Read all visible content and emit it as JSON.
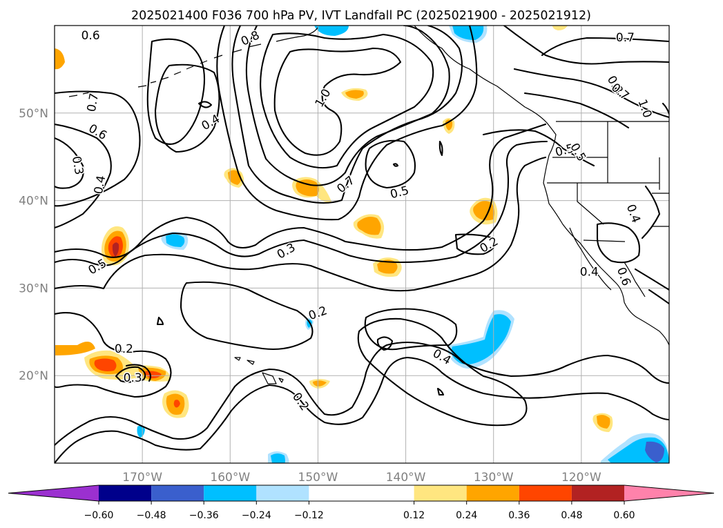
{
  "chart_data": {
    "type": "contour_map",
    "title": "2025021400 F036 700 hPa PV, IVT Landfall PC (2025021900 - 2025021912)",
    "map": {
      "lon_range": [
        -180,
        -110
      ],
      "lat_range": [
        10,
        60
      ],
      "x_ticks": [
        {
          "value": -170,
          "label": "170°W"
        },
        {
          "value": -160,
          "label": "160°W"
        },
        {
          "value": -150,
          "label": "150°W"
        },
        {
          "value": -140,
          "label": "140°W"
        },
        {
          "value": -130,
          "label": "130°W"
        },
        {
          "value": -120,
          "label": "120°W"
        }
      ],
      "y_ticks": [
        {
          "value": 20,
          "label": "20°N"
        },
        {
          "value": 30,
          "label": "30°N"
        },
        {
          "value": 40,
          "label": "40°N"
        },
        {
          "value": 50,
          "label": "50°N"
        }
      ],
      "grid": true
    },
    "contour_labels": [
      {
        "text": "0.6",
        "lon": -175.9,
        "lat": 58.8,
        "rot": 0
      },
      {
        "text": "0.8",
        "lon": -157.7,
        "lat": 58.5,
        "rot": -25
      },
      {
        "text": "0.7",
        "lon": -175.6,
        "lat": 51.2,
        "rot": -80
      },
      {
        "text": "0.6",
        "lon": -175.1,
        "lat": 47.8,
        "rot": 30
      },
      {
        "text": "0.4",
        "lon": -162.2,
        "lat": 48.9,
        "rot": -30
      },
      {
        "text": "1.0",
        "lon": -149.4,
        "lat": 51.7,
        "rot": -60
      },
      {
        "text": "0.3",
        "lon": -177.4,
        "lat": 44.0,
        "rot": 80
      },
      {
        "text": "0.4",
        "lon": -174.8,
        "lat": 41.8,
        "rot": -80
      },
      {
        "text": "0.7",
        "lon": -146.8,
        "lat": 41.8,
        "rot": -40
      },
      {
        "text": "0.5",
        "lon": -140.7,
        "lat": 40.9,
        "rot": -15
      },
      {
        "text": "0.5",
        "lon": -175.1,
        "lat": 32.4,
        "rot": -30
      },
      {
        "text": "0.3",
        "lon": -153.6,
        "lat": 34.2,
        "rot": -30
      },
      {
        "text": "0.2",
        "lon": -130.5,
        "lat": 34.9,
        "rot": -30
      },
      {
        "text": "0.4",
        "lon": -119.1,
        "lat": 31.8,
        "rot": 0
      },
      {
        "text": "0.2",
        "lon": -150.0,
        "lat": 27.1,
        "rot": -20
      },
      {
        "text": "0.2",
        "lon": -172.1,
        "lat": 23.0,
        "rot": 0
      },
      {
        "text": "0.3",
        "lon": -171.1,
        "lat": 19.7,
        "rot": 0
      },
      {
        "text": "0.4",
        "lon": -135.9,
        "lat": 22.1,
        "rot": 30
      },
      {
        "text": "0.2",
        "lon": -152.0,
        "lat": 17.0,
        "rot": 55
      },
      {
        "text": "0.7",
        "lon": -115.0,
        "lat": 58.6,
        "rot": 0
      },
      {
        "text": "0.8",
        "lon": -116.2,
        "lat": 53.2,
        "rot": 60
      },
      {
        "text": "0.7",
        "lon": -115.6,
        "lat": 52.4,
        "rot": 40
      },
      {
        "text": "1.0",
        "lon": -112.8,
        "lat": 50.5,
        "rot": 70
      },
      {
        "text": "0.5",
        "lon": -121.9,
        "lat": 45.7,
        "rot": -15
      },
      {
        "text": "0.5",
        "lon": -120.4,
        "lat": 45.5,
        "rot": 60
      },
      {
        "text": "0.4",
        "lon": -114.1,
        "lat": 38.5,
        "rot": 70
      },
      {
        "text": "0.6",
        "lon": -115.2,
        "lat": 31.3,
        "rot": 70
      }
    ],
    "colorbar": {
      "extend": "both",
      "boundaries": [
        -0.72,
        -0.6,
        -0.48,
        -0.36,
        -0.24,
        -0.12,
        0.12,
        0.24,
        0.36,
        0.48,
        0.6,
        0.72
      ],
      "colors": [
        "#9b30d0",
        "#00008b",
        "#3a5fcd",
        "#00bfff",
        "#b0e2ff",
        "#ffffff",
        "#ffe680",
        "#ffa500",
        "#ff4500",
        "#b22222",
        "#ff82ab"
      ],
      "tick_labels": [
        "−0.60",
        "−0.48",
        "−0.36",
        "−0.24",
        "−0.12",
        "0.12",
        "0.24",
        "0.36",
        "0.48",
        "0.60"
      ]
    }
  }
}
